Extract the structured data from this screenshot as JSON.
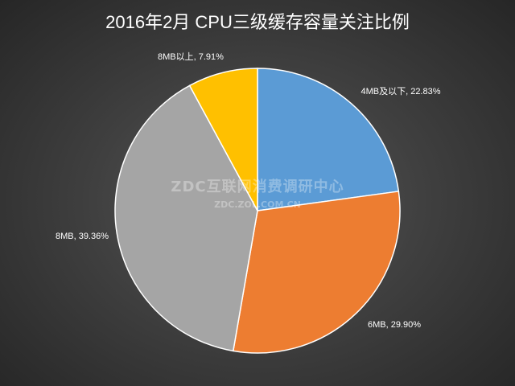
{
  "chart_data": {
    "type": "pie",
    "title": "2016年2月 CPU三级缓存容量关注比例",
    "slices": [
      {
        "name": "4MB及以下",
        "value": 22.83,
        "label": "4MB及以下, 22.83%",
        "color": "#5b9bd5"
      },
      {
        "name": "6MB",
        "value": 29.9,
        "label": "6MB, 29.90%",
        "color": "#ed7d31"
      },
      {
        "name": "8MB",
        "value": 39.36,
        "label": "8MB, 39.36%",
        "color": "#a5a5a5"
      },
      {
        "name": "8MB以上",
        "value": 7.91,
        "label": "8MB以上, 7.91%",
        "color": "#ffc000"
      }
    ],
    "start_angle": "12 o'clock",
    "direction": "clockwise",
    "legend": "none"
  },
  "watermark": {
    "main": "ZDC互联网消费调研中心",
    "sub": "ZDC.ZOL.COM.CN"
  }
}
